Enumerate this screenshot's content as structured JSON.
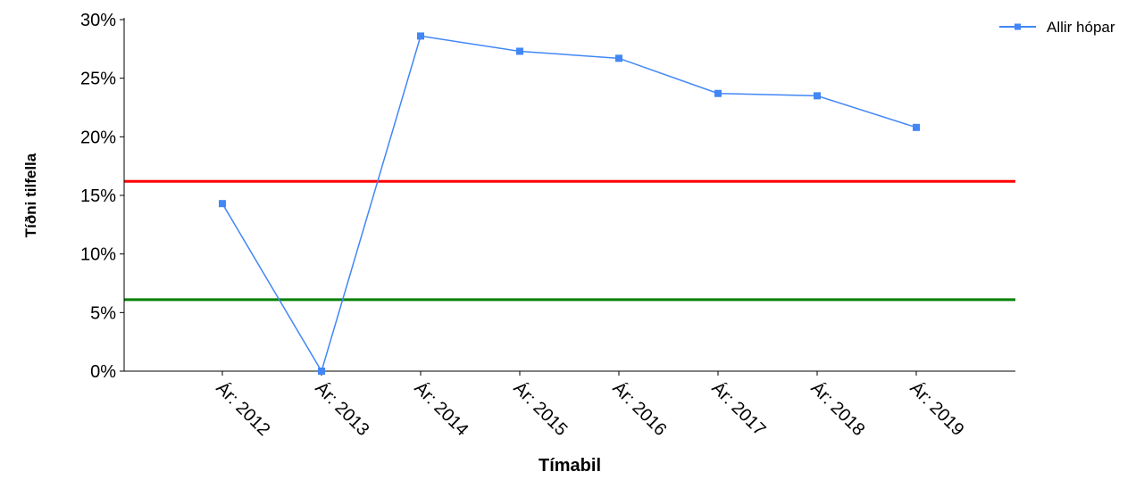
{
  "chart_data": {
    "type": "line",
    "xlabel": "Tímabil",
    "ylabel": "Tíðni tilfella",
    "categories": [
      "Ár: 2012",
      "Ár: 2013",
      "Ár: 2014",
      "Ár: 2015",
      "Ár: 2016",
      "Ár: 2017",
      "Ár: 2018",
      "Ár: 2019"
    ],
    "series": [
      {
        "name": "Allir hópar",
        "color": "#4287f5",
        "values": [
          14.3,
          0,
          28.6,
          27.3,
          26.7,
          23.7,
          23.5,
          20.8
        ]
      }
    ],
    "reference_lines": [
      {
        "value": 16.2,
        "color": "#ff0000"
      },
      {
        "value": 6.1,
        "color": "#008000"
      }
    ],
    "ylim": [
      0,
      30
    ],
    "yticks": [
      0,
      5,
      10,
      15,
      20,
      25,
      30
    ],
    "ytick_labels": [
      "0%",
      "5%",
      "10%",
      "15%",
      "20%",
      "25%",
      "30%"
    ],
    "grid": false,
    "legend_position": "top-right"
  }
}
